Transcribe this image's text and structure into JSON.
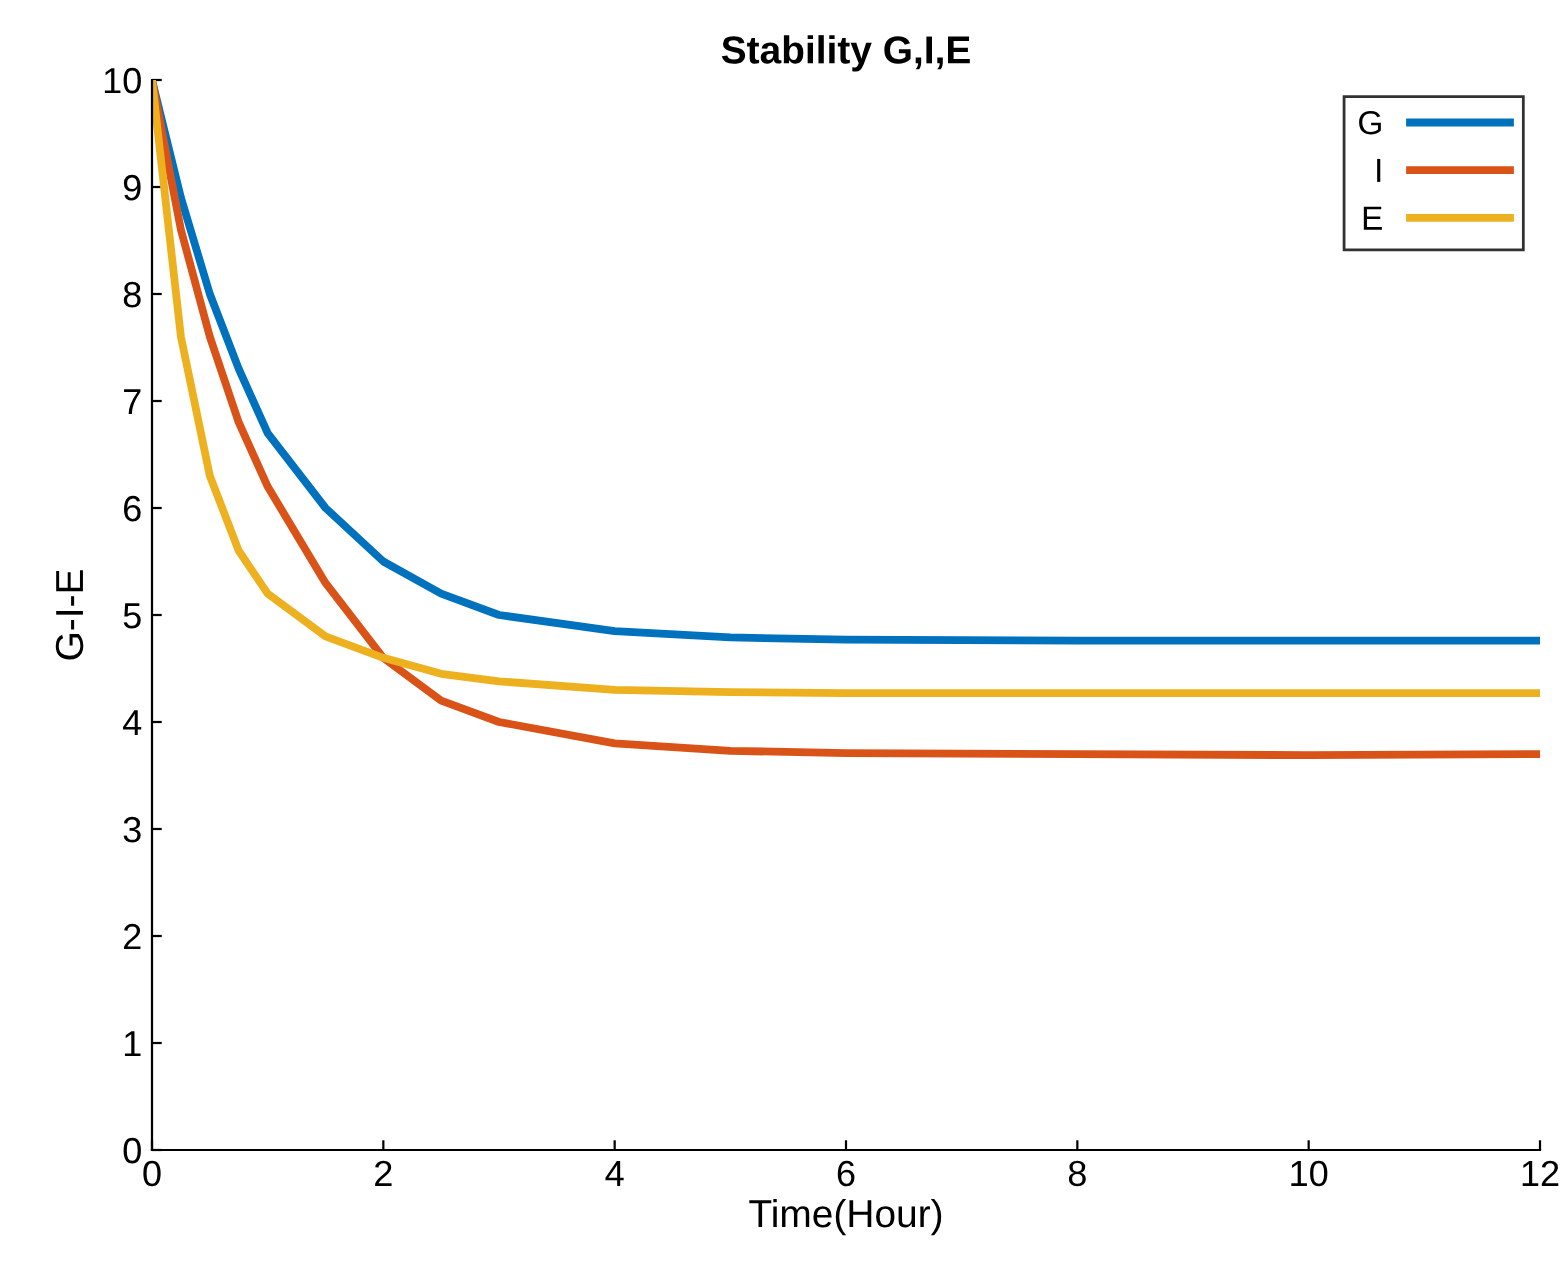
{
  "chart_data": {
    "type": "line",
    "title": "Stability G,I,E",
    "xlabel": "Time(Hour)",
    "ylabel": "G-I-E",
    "x": [
      0,
      0.25,
      0.5,
      0.75,
      1,
      1.5,
      2,
      2.5,
      3,
      4,
      5,
      6,
      8,
      10,
      12
    ],
    "series": [
      {
        "name": "G",
        "color": "#0072bd",
        "values": [
          10,
          8.9,
          8.0,
          7.3,
          6.7,
          6.0,
          5.5,
          5.2,
          5.0,
          4.85,
          4.79,
          4.77,
          4.76,
          4.76,
          4.76
        ]
      },
      {
        "name": "I",
        "color": "#d95319",
        "values": [
          10,
          8.6,
          7.6,
          6.8,
          6.2,
          5.3,
          4.6,
          4.2,
          4.0,
          3.8,
          3.73,
          3.71,
          3.7,
          3.69,
          3.7
        ]
      },
      {
        "name": "E",
        "color": "#edb120",
        "values": [
          10,
          7.6,
          6.3,
          5.6,
          5.2,
          4.8,
          4.6,
          4.45,
          4.38,
          4.3,
          4.28,
          4.27,
          4.27,
          4.27,
          4.27
        ]
      }
    ],
    "xlim": [
      0,
      12
    ],
    "xticks": [
      0,
      2,
      4,
      6,
      8,
      10,
      12
    ],
    "ylim": [
      0,
      10
    ],
    "yticks": [
      0,
      1,
      2,
      3,
      4,
      5,
      6,
      7,
      8,
      9,
      10
    ],
    "legend": "top right",
    "grid": false,
    "marker": "none",
    "line_style": "solid"
  }
}
